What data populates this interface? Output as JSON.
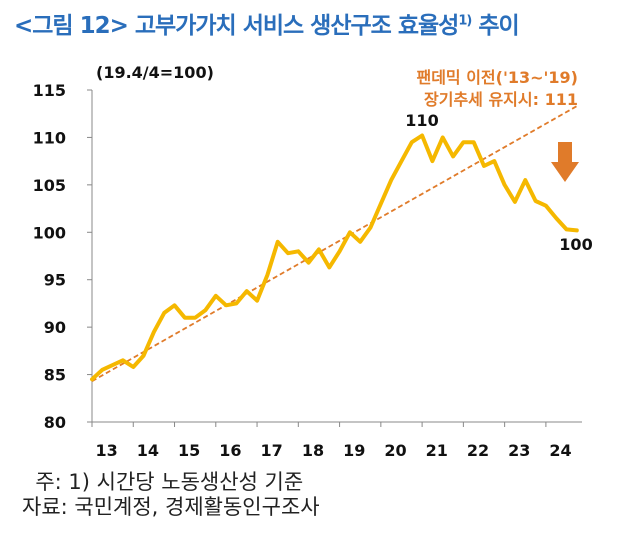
{
  "title": {
    "main": "<그림 12> 고부가가치 서비스 생산구조 효율성",
    "superscript": "1)",
    "suffix": " 추이"
  },
  "notes": {
    "note": "  주: 1) 시간당 노동생산성 기준",
    "source": "자료: 국민계정, 경제활동인구조사"
  },
  "chart_data": {
    "type": "line",
    "index_label": "(19.4/4=100)",
    "ylim": [
      80,
      115
    ],
    "yticks": [
      "80",
      "85",
      "90",
      "95",
      "100",
      "105",
      "110",
      "115"
    ],
    "xlim": [
      2013,
      2024.875
    ],
    "xticks": [
      "13",
      "14",
      "15",
      "16",
      "17",
      "18",
      "19",
      "20",
      "21",
      "22",
      "23",
      "24"
    ],
    "colors": {
      "series": "#f5b800",
      "trend": "#e07b2a",
      "annotation": "#e07b2a",
      "text": "#111111"
    },
    "series": [
      {
        "x": [
          2013.0,
          2013.25,
          2013.5,
          2013.75,
          2014.0,
          2014.25,
          2014.5,
          2014.75,
          2015.0,
          2015.25,
          2015.5,
          2015.75,
          2016.0,
          2016.25,
          2016.5,
          2016.75,
          2017.0,
          2017.25,
          2017.5,
          2017.75,
          2018.0,
          2018.25,
          2018.5,
          2018.75,
          2019.0,
          2019.25,
          2019.5,
          2019.75,
          2020.0,
          2020.25,
          2020.5,
          2020.75,
          2021.0,
          2021.25,
          2021.5,
          2021.75,
          2022.0,
          2022.25,
          2022.5,
          2022.75,
          2023.0,
          2023.25,
          2023.5,
          2023.75,
          2024.0,
          2024.25,
          2024.5,
          2024.75
        ],
        "y": [
          84.5,
          85.5,
          86.0,
          86.5,
          85.8,
          87.0,
          89.5,
          91.5,
          92.3,
          91.0,
          91.0,
          91.8,
          93.3,
          92.3,
          92.5,
          93.8,
          92.8,
          95.5,
          99.0,
          97.8,
          98.0,
          96.8,
          98.2,
          96.3,
          98.0,
          100.0,
          99.0,
          100.5,
          103.0,
          105.5,
          107.5,
          109.5,
          110.2,
          107.5,
          110.0,
          108.0,
          109.5,
          109.5,
          107.0,
          107.5,
          105.0,
          103.2,
          105.5,
          103.3,
          102.8,
          101.5,
          100.3,
          100.2
        ]
      }
    ],
    "trend": {
      "x": [
        2013.0,
        2024.75
      ],
      "y": [
        84.3,
        113.3
      ]
    },
    "annotations": {
      "peak_label": "110",
      "end_label": "100",
      "trend_label_line1": "팬데믹 이전('13~'19)",
      "trend_label_line2": "장기추세 유지시: 111"
    }
  }
}
